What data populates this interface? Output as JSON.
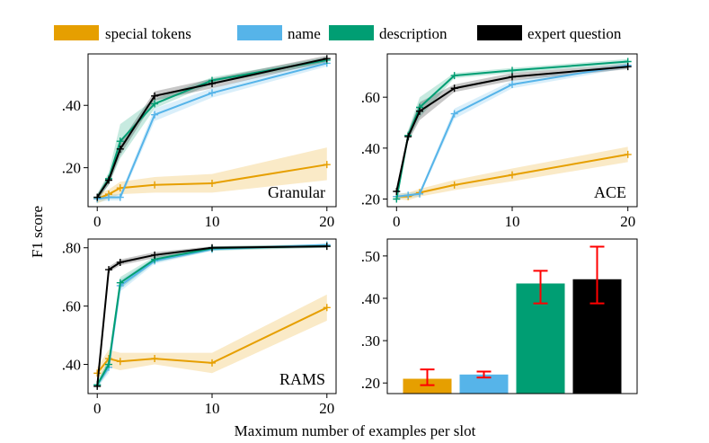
{
  "figure": {
    "ylabel": "F1 score",
    "xlabel": "Maximum number of examples per slot"
  },
  "legend": [
    {
      "name": "special tokens",
      "color": "#E69F00"
    },
    {
      "name": "name",
      "color": "#56B4E9"
    },
    {
      "name": "description",
      "color": "#009E73"
    },
    {
      "name": "expert question",
      "color": "#000000"
    }
  ],
  "chart_data": [
    {
      "type": "line",
      "title": "Granular",
      "xlabel": "",
      "ylabel": "",
      "xlim": [
        -0.8,
        20.8
      ],
      "ylim": [
        0.075,
        0.565
      ],
      "xticks": [
        0,
        10,
        20
      ],
      "xtick_labels": [
        "0",
        "10",
        "20"
      ],
      "yticks": [
        0.2,
        0.4
      ],
      "ytick_labels": [
        ".20",
        ".40"
      ],
      "x": [
        0,
        1,
        2,
        5,
        10,
        20
      ],
      "series": [
        {
          "name": "special tokens",
          "color": "#E69F00",
          "values": [
            0.1,
            0.115,
            0.135,
            0.145,
            0.15,
            0.21
          ],
          "lower": [
            0.085,
            0.1,
            0.115,
            0.12,
            0.12,
            0.16
          ],
          "upper": [
            0.115,
            0.13,
            0.155,
            0.17,
            0.18,
            0.265
          ]
        },
        {
          "name": "name",
          "color": "#56B4E9",
          "values": [
            0.1,
            0.105,
            0.105,
            0.37,
            0.44,
            0.535
          ],
          "lower": [
            0.09,
            0.095,
            0.095,
            0.35,
            0.425,
            0.525
          ],
          "upper": [
            0.11,
            0.115,
            0.115,
            0.39,
            0.455,
            0.545
          ]
        },
        {
          "name": "description",
          "color": "#009E73",
          "values": [
            0.105,
            0.165,
            0.285,
            0.405,
            0.48,
            0.545
          ],
          "lower": [
            0.095,
            0.145,
            0.23,
            0.39,
            0.47,
            0.535
          ],
          "upper": [
            0.115,
            0.185,
            0.34,
            0.42,
            0.49,
            0.555
          ]
        },
        {
          "name": "expert question",
          "color": "#000000",
          "values": [
            0.105,
            0.16,
            0.26,
            0.43,
            0.47,
            0.55
          ],
          "lower": [
            0.095,
            0.145,
            0.24,
            0.415,
            0.455,
            0.54
          ],
          "upper": [
            0.115,
            0.175,
            0.28,
            0.445,
            0.485,
            0.56
          ]
        }
      ]
    },
    {
      "type": "line",
      "title": "ACE",
      "xlabel": "",
      "ylabel": "",
      "xlim": [
        -0.8,
        20.8
      ],
      "ylim": [
        0.17,
        0.77
      ],
      "xticks": [
        0,
        10,
        20
      ],
      "xtick_labels": [
        "0",
        "10",
        "20"
      ],
      "yticks": [
        0.2,
        0.4,
        0.6
      ],
      "ytick_labels": [
        ".20",
        ".40",
        ".60"
      ],
      "x": [
        0,
        1,
        2,
        5,
        10,
        20
      ],
      "series": [
        {
          "name": "special tokens",
          "color": "#E69F00",
          "values": [
            0.21,
            0.21,
            0.225,
            0.255,
            0.295,
            0.375
          ],
          "lower": [
            0.2,
            0.195,
            0.21,
            0.235,
            0.27,
            0.345
          ],
          "upper": [
            0.22,
            0.225,
            0.24,
            0.275,
            0.32,
            0.405
          ]
        },
        {
          "name": "name",
          "color": "#56B4E9",
          "values": [
            0.21,
            0.215,
            0.22,
            0.535,
            0.65,
            0.725
          ],
          "lower": [
            0.2,
            0.205,
            0.21,
            0.515,
            0.635,
            0.715
          ],
          "upper": [
            0.22,
            0.225,
            0.23,
            0.555,
            0.665,
            0.735
          ]
        },
        {
          "name": "description",
          "color": "#009E73",
          "values": [
            0.2,
            0.45,
            0.56,
            0.685,
            0.705,
            0.74
          ],
          "lower": [
            0.19,
            0.43,
            0.52,
            0.675,
            0.695,
            0.73
          ],
          "upper": [
            0.21,
            0.47,
            0.6,
            0.695,
            0.715,
            0.75
          ]
        },
        {
          "name": "expert question",
          "color": "#000000",
          "values": [
            0.23,
            0.445,
            0.545,
            0.635,
            0.68,
            0.72
          ],
          "lower": [
            0.22,
            0.425,
            0.51,
            0.62,
            0.665,
            0.71
          ],
          "upper": [
            0.24,
            0.465,
            0.58,
            0.65,
            0.695,
            0.73
          ]
        }
      ]
    },
    {
      "type": "line",
      "title": "RAMS",
      "xlabel": "",
      "ylabel": "",
      "xlim": [
        -0.8,
        20.8
      ],
      "ylim": [
        0.3,
        0.83
      ],
      "xticks": [
        0,
        10,
        20
      ],
      "xtick_labels": [
        "0",
        "10",
        "20"
      ],
      "yticks": [
        0.4,
        0.6,
        0.8
      ],
      "ytick_labels": [
        ".40",
        ".60",
        ".80"
      ],
      "x": [
        0,
        1,
        2,
        5,
        10,
        20
      ],
      "series": [
        {
          "name": "special tokens",
          "color": "#E69F00",
          "values": [
            0.37,
            0.42,
            0.41,
            0.42,
            0.405,
            0.595
          ],
          "lower": [
            0.35,
            0.39,
            0.38,
            0.4,
            0.37,
            0.55
          ],
          "upper": [
            0.39,
            0.45,
            0.44,
            0.44,
            0.44,
            0.64
          ]
        },
        {
          "name": "name",
          "color": "#56B4E9",
          "values": [
            0.33,
            0.39,
            0.67,
            0.755,
            0.795,
            0.81
          ],
          "lower": [
            0.32,
            0.37,
            0.65,
            0.745,
            0.79,
            0.805
          ],
          "upper": [
            0.34,
            0.41,
            0.69,
            0.765,
            0.8,
            0.815
          ]
        },
        {
          "name": "description",
          "color": "#009E73",
          "values": [
            0.33,
            0.4,
            0.68,
            0.76,
            0.798,
            0.806
          ],
          "lower": [
            0.32,
            0.38,
            0.66,
            0.75,
            0.79,
            0.8
          ],
          "upper": [
            0.34,
            0.42,
            0.7,
            0.77,
            0.805,
            0.812
          ]
        },
        {
          "name": "expert question",
          "color": "#000000",
          "values": [
            0.325,
            0.725,
            0.75,
            0.775,
            0.8,
            0.805
          ],
          "lower": [
            0.315,
            0.715,
            0.74,
            0.765,
            0.795,
            0.8
          ],
          "upper": [
            0.335,
            0.735,
            0.76,
            0.785,
            0.805,
            0.81
          ]
        }
      ]
    },
    {
      "type": "bar",
      "title": "",
      "xlabel": "",
      "ylabel": "",
      "ylim": [
        0.175,
        0.54
      ],
      "yticks": [
        0.2,
        0.3,
        0.4,
        0.5
      ],
      "ytick_labels": [
        ".20",
        ".30",
        ".40",
        ".50"
      ],
      "categories": [
        "special tokens",
        "name",
        "description",
        "expert question"
      ],
      "values": [
        0.21,
        0.22,
        0.435,
        0.445
      ],
      "err_lower": [
        0.195,
        0.213,
        0.388,
        0.388
      ],
      "err_upper": [
        0.232,
        0.227,
        0.465,
        0.522
      ],
      "colors": [
        "#E69F00",
        "#56B4E9",
        "#009E73",
        "#000000"
      ],
      "error_color": "#FF0000"
    }
  ]
}
